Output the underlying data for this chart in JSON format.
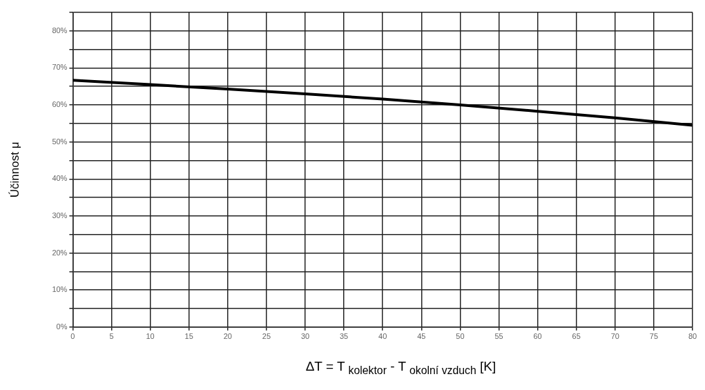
{
  "chart_data": {
    "type": "line",
    "xlabel": "ΔT = T $_{kolektor}$ - T $_{okolní vzduch}$ [K]",
    "ylabel": "Účinnost μ",
    "x": [
      0,
      10,
      20,
      30,
      40,
      50,
      60,
      70,
      80
    ],
    "series": [
      {
        "color": "#000000",
        "values": [
          66.7,
          65.5,
          64.3,
          63,
          61.6,
          60,
          58.3,
          56.5,
          54.5
        ]
      }
    ],
    "xlim": [
      0,
      80
    ],
    "xticks": [
      0,
      5,
      10,
      15,
      20,
      25,
      30,
      35,
      40,
      45,
      50,
      55,
      60,
      65,
      70,
      75,
      80
    ],
    "ylim": [
      0,
      85
    ],
    "yticks": [
      {
        "value": 0,
        "label": "0%"
      },
      {
        "value": 5,
        "label": null
      },
      {
        "value": 10,
        "label": "10%"
      },
      {
        "value": 15,
        "label": null
      },
      {
        "value": 20,
        "label": "20%"
      },
      {
        "value": 25,
        "label": null
      },
      {
        "value": 30,
        "label": "30%"
      },
      {
        "value": 35,
        "label": null
      },
      {
        "value": 40,
        "label": "40%"
      },
      {
        "value": 45,
        "label": null
      },
      {
        "value": 50,
        "label": "50%"
      },
      {
        "value": 55,
        "label": null
      },
      {
        "value": 60,
        "label": "60%"
      },
      {
        "value": 65,
        "label": null
      },
      {
        "value": 70,
        "label": "70%"
      },
      {
        "value": 75,
        "label": null
      },
      {
        "value": 80,
        "label": "80%"
      },
      {
        "value": 85,
        "label": null
      }
    ],
    "grid": true,
    "marker": "none",
    "line_style": "solid"
  }
}
